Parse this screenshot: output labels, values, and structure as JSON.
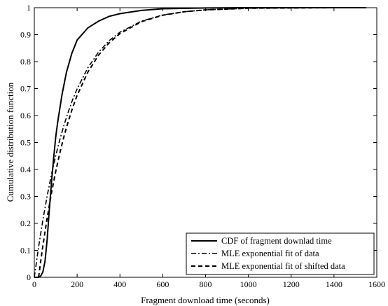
{
  "chart_data": {
    "type": "line",
    "title": "",
    "xlabel": "Fragment download time (seconds)",
    "ylabel": "Cumulative distribution function",
    "xlim": [
      0,
      1600
    ],
    "ylim": [
      0,
      1
    ],
    "xticks": [
      0,
      200,
      400,
      600,
      800,
      1000,
      1200,
      1400,
      1600
    ],
    "yticks": [
      0,
      0.1,
      0.2,
      0.3,
      0.4,
      0.5,
      0.6,
      0.7,
      0.8,
      0.9,
      1
    ],
    "grid": false,
    "legend_position": "bottom-right",
    "series": [
      {
        "name": "CDF of fragment downlad time",
        "style": "solid",
        "x": [
          0,
          20,
          30,
          40,
          50,
          60,
          70,
          80,
          90,
          100,
          110,
          120,
          130,
          140,
          150,
          175,
          200,
          250,
          300,
          350,
          400,
          500,
          600,
          800,
          1000,
          1200,
          1400,
          1550
        ],
        "y": [
          0,
          0,
          0.005,
          0.02,
          0.06,
          0.14,
          0.25,
          0.35,
          0.44,
          0.52,
          0.58,
          0.63,
          0.68,
          0.72,
          0.76,
          0.83,
          0.88,
          0.925,
          0.95,
          0.968,
          0.978,
          0.99,
          0.996,
          0.999,
          1,
          1,
          1,
          1
        ]
      },
      {
        "name": "MLE exponential fit of data",
        "style": "dashdot",
        "x": [
          0,
          20,
          40,
          60,
          80,
          100,
          120,
          140,
          160,
          180,
          200,
          250,
          300,
          350,
          400,
          500,
          600,
          700,
          800,
          1000,
          1200,
          1400,
          1550
        ],
        "y": [
          0,
          0.113,
          0.213,
          0.302,
          0.381,
          0.451,
          0.513,
          0.568,
          0.617,
          0.661,
          0.699,
          0.777,
          0.835,
          0.878,
          0.909,
          0.95,
          0.973,
          0.985,
          0.992,
          0.998,
          0.999,
          1,
          1
        ]
      },
      {
        "name": "MLE exponential fit of shifted data",
        "style": "dashed",
        "x": [
          20,
          30,
          40,
          60,
          80,
          100,
          120,
          140,
          160,
          180,
          200,
          250,
          300,
          350,
          400,
          500,
          600,
          700,
          800,
          1000,
          1200,
          1400,
          1550
        ],
        "y": [
          0,
          0.06,
          0.117,
          0.22,
          0.312,
          0.393,
          0.464,
          0.527,
          0.582,
          0.631,
          0.675,
          0.761,
          0.824,
          0.87,
          0.904,
          0.948,
          0.972,
          0.985,
          0.992,
          0.998,
          0.999,
          1,
          1
        ]
      }
    ]
  }
}
